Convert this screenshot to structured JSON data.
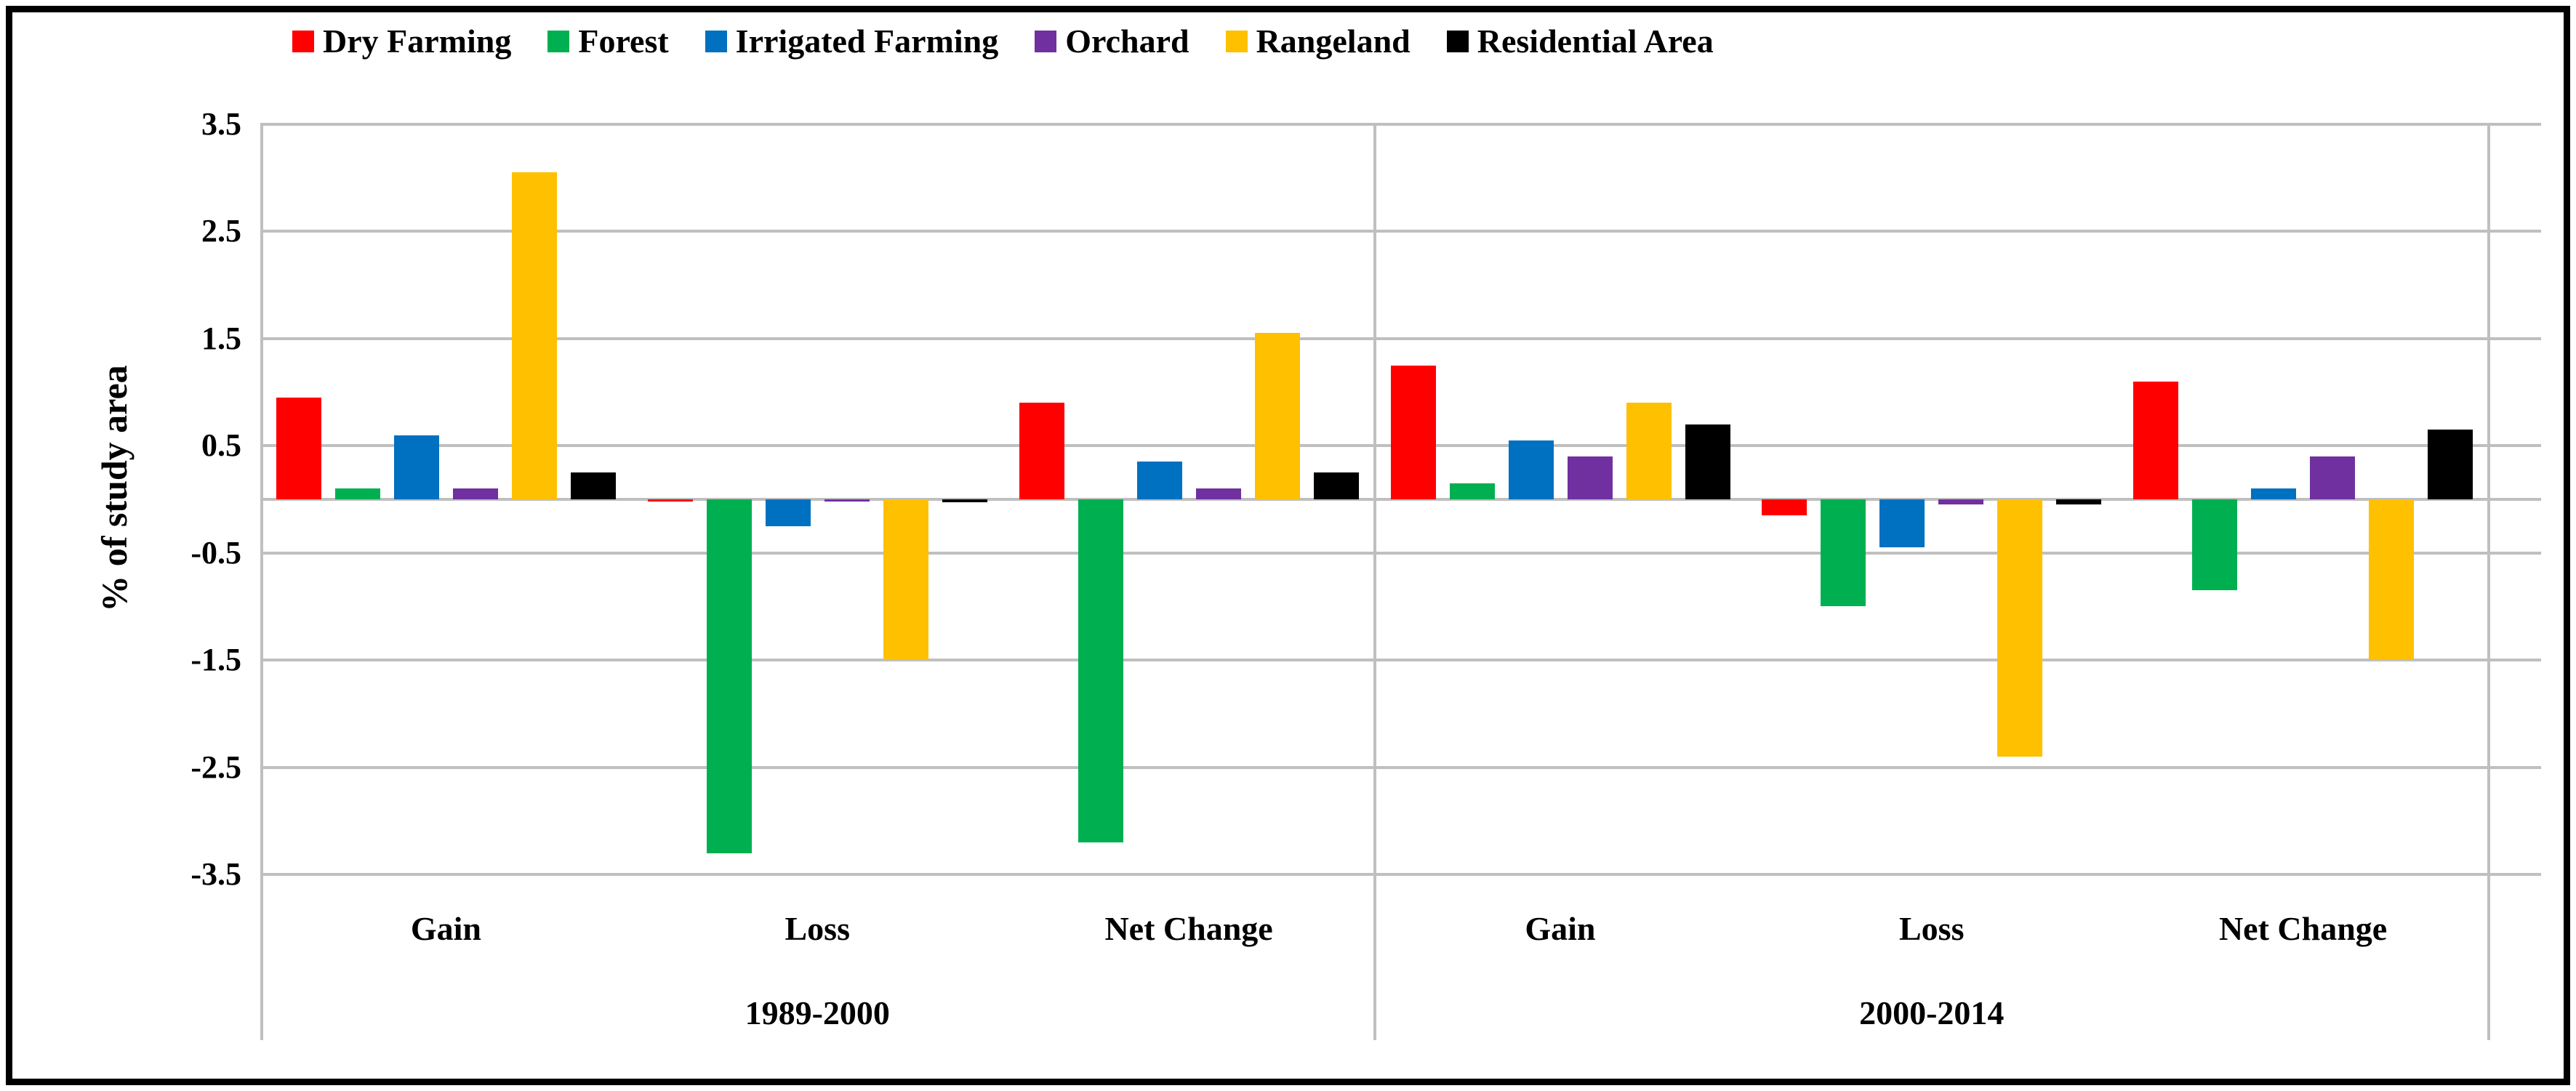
{
  "chart_data": {
    "type": "bar",
    "title": "",
    "ylabel": "% of study area",
    "ylim": [
      -3.5,
      3.5
    ],
    "grid": true,
    "legend_position": "top",
    "y_ticks": [
      3.5,
      2.5,
      1.5,
      0.5,
      -0.5,
      -1.5,
      -2.5,
      -3.5
    ],
    "periods": [
      {
        "label": "1989-2000",
        "categories": [
          "Gain",
          "Loss",
          "Net Change"
        ]
      },
      {
        "label": "2000-2014",
        "categories": [
          "Gain",
          "Loss",
          "Net Change"
        ]
      }
    ],
    "series": [
      {
        "name": "Dry Farming",
        "color": "#FF0000",
        "values": [
          0.95,
          -0.02,
          0.9,
          1.25,
          -0.15,
          1.1
        ]
      },
      {
        "name": "Forest",
        "color": "#00B050",
        "values": [
          0.1,
          -3.3,
          -3.2,
          0.15,
          -1.0,
          -0.85
        ]
      },
      {
        "name": "Irrigated Farming",
        "color": "#0070C0",
        "values": [
          0.6,
          -0.25,
          0.35,
          0.55,
          -0.45,
          0.1
        ]
      },
      {
        "name": "Orchard",
        "color": "#7030A0",
        "values": [
          0.1,
          -0.02,
          0.1,
          0.4,
          -0.05,
          0.4
        ]
      },
      {
        "name": "Rangeland",
        "color": "#FFC000",
        "values": [
          3.05,
          -1.5,
          1.55,
          0.9,
          -2.4,
          -1.5
        ]
      },
      {
        "name": "Residential Area",
        "color": "#000000",
        "values": [
          0.25,
          -0.03,
          0.25,
          0.7,
          -0.05,
          0.65
        ]
      }
    ],
    "colors": {
      "gridline": "#BFBFBF",
      "text": "#000000",
      "background": "#FFFFFF",
      "border": "#000000"
    }
  }
}
